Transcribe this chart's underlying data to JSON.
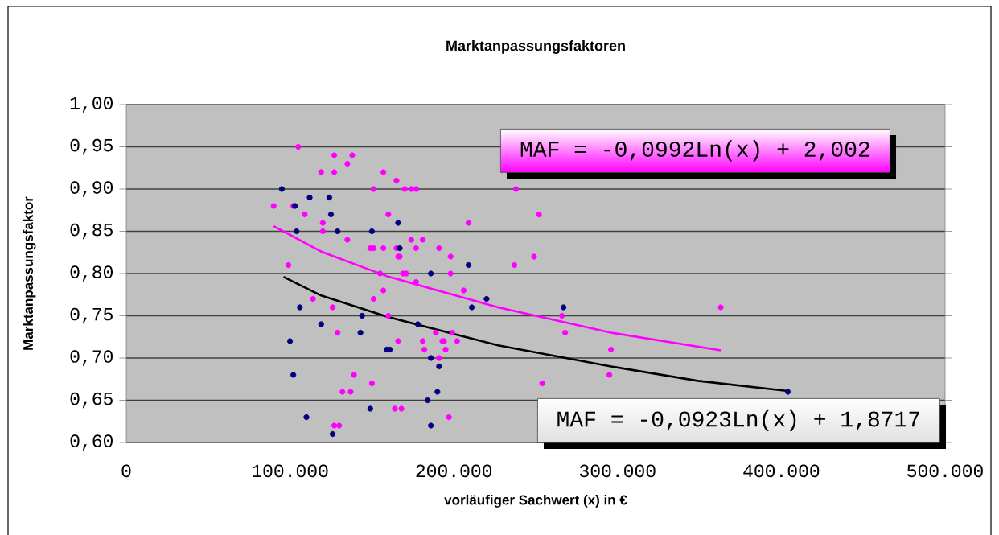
{
  "chart_data": {
    "type": "scatter",
    "title": "Marktanpassungsfaktoren",
    "xlabel": "vorläufiger Sachwert (x) in €",
    "ylabel": "Marktanpassungsfaktor",
    "xlim": [
      0,
      500000
    ],
    "ylim": [
      0.6,
      1.0
    ],
    "xticks": [
      0,
      {
        "value": 100000,
        "label": "100.000"
      },
      {
        "value": 200000,
        "label": "200.000"
      },
      {
        "value": 300000,
        "label": "300.000"
      },
      {
        "value": 400000,
        "label": "400.000"
      },
      {
        "value": 500000,
        "label": "500.000"
      }
    ],
    "yticks": [
      {
        "value": 0.6,
        "label": "0,60"
      },
      {
        "value": 0.65,
        "label": "0,65"
      },
      {
        "value": 0.7,
        "label": "0,70"
      },
      {
        "value": 0.75,
        "label": "0,75"
      },
      {
        "value": 0.8,
        "label": "0,80"
      },
      {
        "value": 0.85,
        "label": "0,85"
      },
      {
        "value": 0.9,
        "label": "0,90"
      },
      {
        "value": 0.95,
        "label": "0,95"
      },
      {
        "value": 1.0,
        "label": "1,00"
      }
    ],
    "grid": "y",
    "marker": "circle",
    "annotations": [
      "MAF = -0,0992Ln(x) + 2,002",
      "MAF = -0,0923Ln(x) + 1,8717"
    ],
    "series": [
      {
        "color": "#ff00ff",
        "x": [
          105000,
          127000,
          138000,
          135000,
          119000,
          127000,
          157000,
          151000,
          90000,
          102000,
          109000,
          120000,
          120000,
          135000,
          149000,
          151000,
          157000,
          99000,
          155000,
          157000,
          114000,
          151000,
          126000,
          129000,
          139000,
          150000,
          132000,
          137000,
          127000,
          130000,
          165000,
          170000,
          174000,
          177000,
          160000,
          209000,
          174000,
          181000,
          165000,
          177000,
          191000,
          166000,
          167000,
          198000,
          169000,
          171000,
          198000,
          177000,
          206000,
          160000,
          189000,
          199000,
          166000,
          181000,
          193000,
          194000,
          202000,
          182000,
          195000,
          191000,
          164000,
          168000,
          197000,
          238000,
          252000,
          249000,
          237000,
          266000,
          268000,
          296000,
          295000,
          254000,
          363000
        ],
        "values": [
          0.95,
          0.94,
          0.94,
          0.93,
          0.92,
          0.92,
          0.92,
          0.9,
          0.88,
          0.88,
          0.87,
          0.86,
          0.85,
          0.84,
          0.83,
          0.83,
          0.83,
          0.81,
          0.8,
          0.78,
          0.77,
          0.77,
          0.76,
          0.73,
          0.68,
          0.67,
          0.66,
          0.66,
          0.62,
          0.62,
          0.91,
          0.9,
          0.9,
          0.9,
          0.87,
          0.86,
          0.84,
          0.84,
          0.83,
          0.83,
          0.83,
          0.82,
          0.82,
          0.82,
          0.8,
          0.8,
          0.8,
          0.79,
          0.78,
          0.75,
          0.73,
          0.73,
          0.72,
          0.72,
          0.72,
          0.72,
          0.72,
          0.71,
          0.71,
          0.7,
          0.64,
          0.64,
          0.63,
          0.9,
          0.87,
          0.82,
          0.81,
          0.75,
          0.73,
          0.71,
          0.68,
          0.67,
          0.76
        ]
      },
      {
        "color": "#000080",
        "x": [
          95000,
          112000,
          124000,
          103000,
          125000,
          104000,
          129000,
          150000,
          106000,
          144000,
          119000,
          143000,
          100000,
          102000,
          149000,
          110000,
          126000,
          166000,
          167000,
          209000,
          186000,
          220000,
          211000,
          178000,
          159000,
          161000,
          186000,
          191000,
          190000,
          184000,
          186000,
          267000,
          404000
        ],
        "values": [
          0.9,
          0.89,
          0.89,
          0.88,
          0.87,
          0.85,
          0.85,
          0.85,
          0.76,
          0.75,
          0.74,
          0.73,
          0.72,
          0.68,
          0.64,
          0.63,
          0.61,
          0.86,
          0.83,
          0.81,
          0.8,
          0.77,
          0.76,
          0.74,
          0.71,
          0.71,
          0.7,
          0.69,
          0.66,
          0.65,
          0.62,
          0.76,
          0.66
        ]
      },
      {
        "type": "line",
        "color": "#ff00ff",
        "marker": "none",
        "x": [
          90000,
          119000,
          159000,
          227000,
          296000,
          363000
        ],
        "values": [
          0.856,
          0.826,
          0.797,
          0.76,
          0.73,
          0.709
        ]
      },
      {
        "type": "line",
        "color": "#000000",
        "marker": "none",
        "x": [
          96000,
          119000,
          159000,
          227000,
          296000,
          349000,
          404000
        ],
        "values": [
          0.796,
          0.774,
          0.749,
          0.715,
          0.69,
          0.673,
          0.661
        ]
      }
    ]
  }
}
